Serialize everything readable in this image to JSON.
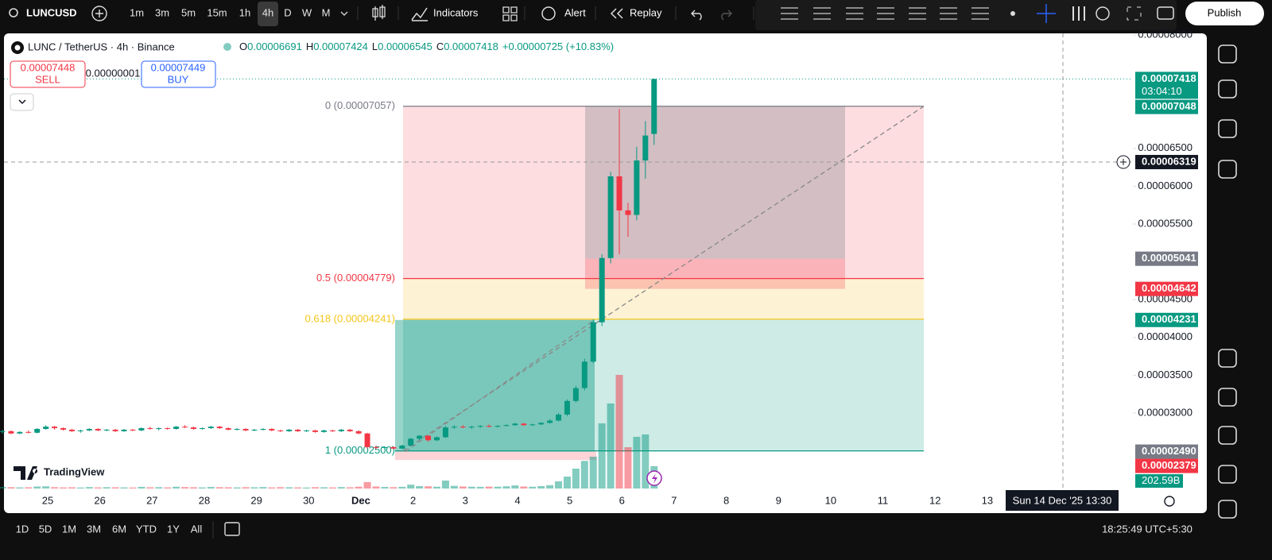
{
  "toolbar": {
    "symbol": "LUNCUSD",
    "intervals": [
      "1m",
      "3m",
      "5m",
      "15m",
      "1h",
      "4h",
      "D",
      "W",
      "M"
    ],
    "active_interval": "4h",
    "indicators": "Indicators",
    "alert": "Alert",
    "replay": "Replay",
    "publish": "Publish"
  },
  "legend": {
    "title": "LUNC / TetherUS · 4h · Binance",
    "o_label": "O",
    "open": "0.00006691",
    "h_label": "H",
    "high": "0.00007424",
    "l_label": "L",
    "low": "0.00006545",
    "c_label": "C",
    "close": "0.00007418",
    "change": "+0.00000725 (+10.83%)"
  },
  "trade": {
    "sell_price": "0.00007448",
    "sell": "SELL",
    "spread": "0.00000001",
    "buy_price": "0.00007449",
    "buy": "BUY"
  },
  "chart": {
    "ylim": [
      2e-05,
      8e-05
    ],
    "yticks": [
      {
        "value": 8e-05,
        "label": "0.00008000"
      },
      {
        "value": 6.5e-05,
        "label": "0.00006500"
      },
      {
        "value": 6e-05,
        "label": "0.00006000"
      },
      {
        "value": 5.5e-05,
        "label": "0.00005500"
      },
      {
        "value": 4.5e-05,
        "label": "0.00004500"
      },
      {
        "value": 4e-05,
        "label": "0.00004000"
      },
      {
        "value": 3.5e-05,
        "label": "0.00003500"
      },
      {
        "value": 3e-05,
        "label": "0.00003000"
      }
    ],
    "x_labels": [
      "25",
      "26",
      "27",
      "28",
      "29",
      "30",
      "Dec",
      "2",
      "3",
      "4",
      "5",
      "6",
      "7",
      "8",
      "9",
      "10",
      "11",
      "12",
      "13"
    ],
    "up_color": "#089981",
    "down_color": "#f23645",
    "candles": [
      [
        2.75e-05,
        2.78e-05,
        2.73e-05,
        2.76e-05
      ],
      [
        2.76e-05,
        2.77e-05,
        2.72e-05,
        2.73e-05
      ],
      [
        2.73e-05,
        2.76e-05,
        2.72e-05,
        2.75e-05
      ],
      [
        2.75e-05,
        2.77e-05,
        2.73e-05,
        2.74e-05
      ],
      [
        2.74e-05,
        2.8e-05,
        2.73e-05,
        2.79e-05
      ],
      [
        2.79e-05,
        2.84e-05,
        2.78e-05,
        2.82e-05
      ],
      [
        2.82e-05,
        2.83e-05,
        2.78e-05,
        2.8e-05
      ],
      [
        2.8e-05,
        2.81e-05,
        2.77e-05,
        2.78e-05
      ],
      [
        2.78e-05,
        2.79e-05,
        2.75e-05,
        2.76e-05
      ],
      [
        2.76e-05,
        2.78e-05,
        2.74e-05,
        2.77e-05
      ],
      [
        2.77e-05,
        2.8e-05,
        2.76e-05,
        2.79e-05
      ],
      [
        2.79e-05,
        2.8e-05,
        2.76e-05,
        2.77e-05
      ],
      [
        2.77e-05,
        2.79e-05,
        2.76e-05,
        2.78e-05
      ],
      [
        2.78e-05,
        2.79e-05,
        2.75e-05,
        2.76e-05
      ],
      [
        2.76e-05,
        2.79e-05,
        2.75e-05,
        2.78e-05
      ],
      [
        2.78e-05,
        2.79e-05,
        2.76e-05,
        2.77e-05
      ],
      [
        2.77e-05,
        2.81e-05,
        2.76e-05,
        2.8e-05
      ],
      [
        2.8e-05,
        2.82e-05,
        2.78e-05,
        2.79e-05
      ],
      [
        2.79e-05,
        2.81e-05,
        2.77e-05,
        2.8e-05
      ],
      [
        2.8e-05,
        2.81e-05,
        2.78e-05,
        2.79e-05
      ],
      [
        2.79e-05,
        2.83e-05,
        2.78e-05,
        2.82e-05
      ],
      [
        2.82e-05,
        2.84e-05,
        2.8e-05,
        2.81e-05
      ],
      [
        2.81e-05,
        2.82e-05,
        2.78e-05,
        2.79e-05
      ],
      [
        2.79e-05,
        2.81e-05,
        2.78e-05,
        2.8e-05
      ],
      [
        2.8e-05,
        2.83e-05,
        2.79e-05,
        2.82e-05
      ],
      [
        2.82e-05,
        2.83e-05,
        2.79e-05,
        2.8e-05
      ],
      [
        2.8e-05,
        2.81e-05,
        2.77e-05,
        2.78e-05
      ],
      [
        2.78e-05,
        2.8e-05,
        2.77e-05,
        2.79e-05
      ],
      [
        2.79e-05,
        2.8e-05,
        2.76e-05,
        2.77e-05
      ],
      [
        2.77e-05,
        2.79e-05,
        2.76e-05,
        2.78e-05
      ],
      [
        2.78e-05,
        2.8e-05,
        2.77e-05,
        2.79e-05
      ],
      [
        2.79e-05,
        2.8e-05,
        2.76e-05,
        2.77e-05
      ],
      [
        2.77e-05,
        2.78e-05,
        2.75e-05,
        2.76e-05
      ],
      [
        2.76e-05,
        2.79e-05,
        2.75e-05,
        2.78e-05
      ],
      [
        2.78e-05,
        2.79e-05,
        2.75e-05,
        2.76e-05
      ],
      [
        2.76e-05,
        2.78e-05,
        2.75e-05,
        2.77e-05
      ],
      [
        2.77e-05,
        2.78e-05,
        2.74e-05,
        2.75e-05
      ],
      [
        2.75e-05,
        2.78e-05,
        2.74e-05,
        2.77e-05
      ],
      [
        2.77e-05,
        2.78e-05,
        2.75e-05,
        2.76e-05
      ],
      [
        2.76e-05,
        2.79e-05,
        2.75e-05,
        2.78e-05
      ],
      [
        2.78e-05,
        2.79e-05,
        2.75e-05,
        2.76e-05
      ],
      [
        2.76e-05,
        2.77e-05,
        2.72e-05,
        2.73e-05
      ],
      [
        2.73e-05,
        2.74e-05,
        2.53e-05,
        2.55e-05
      ],
      [
        2.55e-05,
        2.57e-05,
        2.52e-05,
        2.54e-05
      ],
      [
        2.54e-05,
        2.56e-05,
        2.52e-05,
        2.55e-05
      ],
      [
        2.55e-05,
        2.56e-05,
        2.52e-05,
        2.53e-05
      ],
      [
        2.53e-05,
        2.58e-05,
        2.52e-05,
        2.57e-05
      ],
      [
        2.57e-05,
        2.67e-05,
        2.56e-05,
        2.66e-05
      ],
      [
        2.66e-05,
        2.71e-05,
        2.64e-05,
        2.7e-05
      ],
      [
        2.7e-05,
        2.71e-05,
        2.62e-05,
        2.64e-05
      ],
      [
        2.64e-05,
        2.69e-05,
        2.63e-05,
        2.68e-05
      ],
      [
        2.68e-05,
        2.83e-05,
        2.67e-05,
        2.81e-05
      ],
      [
        2.81e-05,
        2.84e-05,
        2.79e-05,
        2.82e-05
      ],
      [
        2.82e-05,
        2.84e-05,
        2.8e-05,
        2.81e-05
      ],
      [
        2.81e-05,
        2.83e-05,
        2.79e-05,
        2.82e-05
      ],
      [
        2.82e-05,
        2.84e-05,
        2.8e-05,
        2.83e-05
      ],
      [
        2.83e-05,
        2.85e-05,
        2.81e-05,
        2.82e-05
      ],
      [
        2.82e-05,
        2.84e-05,
        2.81e-05,
        2.83e-05
      ],
      [
        2.83e-05,
        2.85e-05,
        2.82e-05,
        2.84e-05
      ],
      [
        2.84e-05,
        2.87e-05,
        2.83e-05,
        2.86e-05
      ],
      [
        2.86e-05,
        2.87e-05,
        2.83e-05,
        2.84e-05
      ],
      [
        2.84e-05,
        2.86e-05,
        2.83e-05,
        2.85e-05
      ],
      [
        2.85e-05,
        2.88e-05,
        2.84e-05,
        2.87e-05
      ],
      [
        2.87e-05,
        2.92e-05,
        2.86e-05,
        2.9e-05
      ],
      [
        2.9e-05,
        3e-05,
        2.89e-05,
        2.98e-05
      ],
      [
        2.98e-05,
        3.18e-05,
        2.96e-05,
        3.16e-05
      ],
      [
        3.16e-05,
        3.36e-05,
        3.14e-05,
        3.33e-05
      ],
      [
        3.33e-05,
        3.72e-05,
        3.3e-05,
        3.68e-05
      ],
      [
        3.68e-05,
        4.24e-05,
        3.66e-05,
        4.2e-05
      ],
      [
        4.2e-05,
        5.1e-05,
        4.15e-05,
        5.05e-05
      ],
      [
        5.05e-05,
        6.19e-05,
        4.98e-05,
        6.13e-05
      ],
      [
        6.13e-05,
        7.02e-05,
        5.1e-05,
        5.68e-05
      ],
      [
        5.68e-05,
        5.78e-05,
        5.33e-05,
        5.62e-05
      ],
      [
        5.62e-05,
        6.52e-05,
        5.55e-05,
        6.34e-05
      ],
      [
        6.34e-05,
        6.86e-05,
        6.1e-05,
        6.67e-05
      ],
      [
        6.691e-05,
        7.424e-05,
        6.545e-05,
        7.418e-05
      ]
    ],
    "volume": [
      14,
      12,
      10,
      11,
      18,
      20,
      12,
      10,
      11,
      9,
      13,
      10,
      12,
      11,
      10,
      9,
      15,
      11,
      12,
      10,
      16,
      13,
      11,
      10,
      14,
      12,
      11,
      10,
      12,
      11,
      13,
      10,
      12,
      11,
      10,
      9,
      12,
      11,
      10,
      13,
      11,
      16,
      58,
      18,
      14,
      12,
      15,
      35,
      22,
      20,
      16,
      72,
      24,
      18,
      16,
      15,
      17,
      16,
      20,
      28,
      18,
      16,
      22,
      30,
      65,
      108,
      180,
      250,
      288,
      590,
      770,
      1029,
      374,
      468,
      490,
      202.59
    ],
    "volume_label": "202.59B",
    "fib_levels": [
      {
        "label": "0 (0.00007057)",
        "price": 7.057e-05,
        "color": "#787b86"
      },
      {
        "label": "0.5 (0.00004779)",
        "price": 4.779e-05,
        "color": "#f23645"
      },
      {
        "label": "0.618 (0.00004241)",
        "price": 4.241e-05,
        "color": "#f5c518"
      },
      {
        "label": "1 (0.00002500)",
        "price": 2.5e-05,
        "color": "#089981"
      }
    ],
    "price_labels": [
      {
        "value": 7.418e-05,
        "label": "0.00007418",
        "sub": "03:04:10",
        "color": "#089981"
      },
      {
        "value": 7.048e-05,
        "label": "0.00007048",
        "color": "#089981"
      },
      {
        "value": 6.319e-05,
        "label": "0.00006319",
        "color": "#131722"
      },
      {
        "value": 5.041e-05,
        "label": "0.00005041",
        "color": "#787b86"
      },
      {
        "value": 4.642e-05,
        "label": "0.00004642",
        "color": "#f23645"
      },
      {
        "value": 4.231e-05,
        "label": "0.00004231",
        "color": "#089981"
      },
      {
        "value": 2.49e-05,
        "label": "0.00002490",
        "color": "#787b86"
      },
      {
        "value": 2.379e-05,
        "label": "0.00002379",
        "color": "#f23645"
      }
    ],
    "crosshair_date": "Sun 14 Dec '25   13:30",
    "watermark": "TradingView"
  },
  "bottom": {
    "ranges": [
      "1D",
      "5D",
      "1M",
      "3M",
      "6M",
      "YTD",
      "1Y",
      "All"
    ],
    "clock": "18:25:49 UTC+5:30"
  }
}
